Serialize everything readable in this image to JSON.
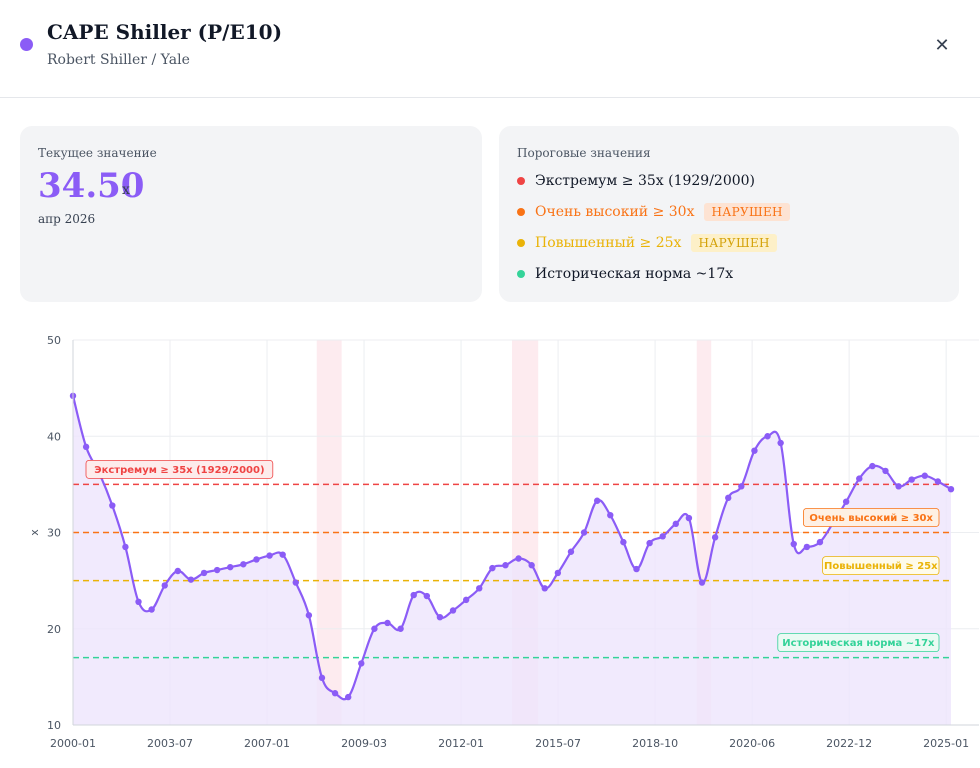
{
  "header": {
    "title": "CAPE Shiller (P/E10)",
    "subtitle": "Robert Shiller / Yale",
    "dot_color": "#8b5cf6",
    "close_icon": "close-icon"
  },
  "current": {
    "label": "Текущее значение",
    "value": "34.50",
    "unit": "x",
    "date": "апр 2026",
    "color": "#8b5cf6"
  },
  "thresholds": {
    "label": "Пороговые значения",
    "items": [
      {
        "text": "Экстремум ≥ 35x (1929/2000)",
        "color": "#ef4444",
        "text_color": "#111827",
        "badge": ""
      },
      {
        "text": "Очень высокий ≥ 30x",
        "color": "#f97316",
        "text_color": "#f97316",
        "badge": "НАРУШЕН",
        "badge_bg": "#fde3d3",
        "badge_color": "#f97316"
      },
      {
        "text": "Повышенный ≥ 25x",
        "color": "#eab308",
        "text_color": "#eab308",
        "badge": "НАРУШЕН",
        "badge_bg": "#fdf0c8",
        "badge_color": "#d4a20a"
      },
      {
        "text": "Историческая норма ~17x",
        "color": "#34d399",
        "text_color": "#111827",
        "badge": ""
      }
    ]
  },
  "chart_data": {
    "type": "line",
    "ylabel": "x",
    "ylim": [
      10,
      50
    ],
    "yticks": [
      10,
      20,
      30,
      40,
      50
    ],
    "x_tick_labels": [
      "2000-01",
      "2003-07",
      "2007-01",
      "2009-03",
      "2012-01",
      "2015-07",
      "2018-10",
      "2020-06",
      "2022-12",
      "2025-01"
    ],
    "line_color": "#8b5cf6",
    "fill_color": "#ede5fd",
    "grid": true,
    "series": [
      {
        "values": [
          44.2,
          38.9,
          36.2,
          32.8,
          28.5,
          22.8,
          22.0,
          24.5,
          26.0,
          25.1,
          25.8,
          26.1,
          26.4,
          26.7,
          27.2,
          27.6,
          27.7,
          24.8,
          21.4,
          14.9,
          13.3,
          12.9,
          16.4,
          20.0,
          20.6,
          20.0,
          23.5,
          23.4,
          21.2,
          21.9,
          23.0,
          24.2,
          26.3,
          26.6,
          27.3,
          26.6,
          24.2,
          25.8,
          28.0,
          30.0,
          33.3,
          31.8,
          29.0,
          26.2,
          28.9,
          29.6,
          30.9,
          31.5,
          24.8,
          29.5,
          33.6,
          34.8,
          38.5,
          40.0,
          39.3,
          28.8,
          28.5,
          29.0,
          31.0,
          33.2,
          35.6,
          36.9,
          36.4,
          34.8,
          35.5,
          35.9,
          35.3,
          34.5
        ]
      }
    ],
    "threshold_lines": [
      {
        "value": 35,
        "label": "Экстремум ≥ 35x (1929/2000)",
        "color": "#ef4444",
        "bg": "#fdecec",
        "label_side": "left"
      },
      {
        "value": 30,
        "label": "Очень высокий ≥ 30x",
        "color": "#f97316",
        "bg": "#fef0e4",
        "label_side": "right"
      },
      {
        "value": 25,
        "label": "Повышенный ≥ 25x",
        "color": "#eab308",
        "bg": "#fefbea",
        "label_side": "right"
      },
      {
        "value": 17,
        "label": "Историческая норма ~17x",
        "color": "#34d399",
        "bg": "#eafaf3",
        "label_side": "right"
      }
    ],
    "shaded_periods": [
      {
        "from_index": 18.6,
        "to_index": 20.5
      },
      {
        "from_index": 33.5,
        "to_index": 35.5
      },
      {
        "from_index": 47.6,
        "to_index": 48.7
      }
    ]
  }
}
